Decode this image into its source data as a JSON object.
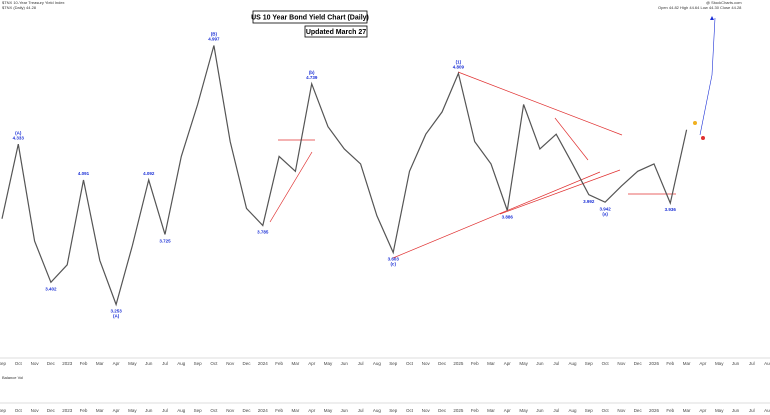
{
  "header_left": [
    "$TNX 10-Year Treasury Yield Index",
    "$TNX (Daily) 44.28"
  ],
  "header_right": "Open 44.82  High 44.64  Low 44.30  Close 44.28",
  "watermark": "@ StockCharts.com",
  "panel_label": "Balance Vol",
  "chart_data": {
    "type": "line",
    "title": "US 10 Year Bond Yield Chart (Daily)",
    "subtitle": "Updated March 27",
    "categories": [
      "Sep",
      "Oct",
      "Nov",
      "Dec",
      "2023",
      "Feb",
      "Mar",
      "Apr",
      "May",
      "Jun",
      "Jul",
      "Aug",
      "Sep",
      "Oct",
      "Nov",
      "Dec",
      "2024",
      "Feb",
      "Mar",
      "Apr",
      "May",
      "Jun",
      "Jul",
      "Aug",
      "Sep",
      "Oct",
      "Nov",
      "Dec",
      "2025",
      "Feb",
      "Mar",
      "Apr",
      "May",
      "Jun",
      "Jul",
      "Aug",
      "Sep",
      "Oct",
      "Nov",
      "Dec",
      "2026",
      "Feb",
      "Mar",
      "Apr",
      "May",
      "Jun",
      "Jul",
      "Aug",
      "Sep"
    ],
    "series": [
      {
        "name": "$TNX",
        "color": "#555555",
        "values": [
          3.83,
          4.333,
          3.68,
          3.402,
          3.52,
          4.091,
          3.55,
          3.253,
          3.65,
          4.092,
          3.725,
          4.25,
          4.6,
          4.997,
          4.35,
          3.9,
          3.785,
          4.25,
          4.15,
          4.739,
          4.45,
          4.3,
          4.2,
          3.85,
          3.603,
          4.15,
          4.4,
          4.55,
          4.809,
          4.35,
          4.2,
          3.886,
          4.6,
          4.3,
          4.4,
          4.2,
          3.992,
          3.942,
          4.05,
          4.15,
          4.2,
          3.936,
          4.43,
          null,
          null,
          null,
          null,
          null,
          null
        ],
        "value_labels": [
          null,
          "4.333",
          null,
          "3.402",
          null,
          "4.091",
          null,
          "3.253",
          null,
          "4.092",
          "3.725",
          null,
          null,
          "4.997",
          null,
          null,
          "3.785",
          null,
          null,
          "4.739",
          null,
          null,
          null,
          null,
          "3.603",
          null,
          null,
          null,
          "4.809",
          null,
          null,
          "3.886",
          null,
          null,
          null,
          null,
          "3.992",
          "3.942",
          null,
          null,
          null,
          "3.936",
          null,
          null,
          null,
          null,
          null,
          null,
          null
        ],
        "wave_labels": [
          null,
          "(A)",
          null,
          null,
          null,
          null,
          null,
          "(A)",
          null,
          null,
          null,
          null,
          null,
          "(B)",
          null,
          null,
          null,
          null,
          null,
          "(b)",
          null,
          null,
          null,
          null,
          "(c)",
          null,
          null,
          null,
          "(1)",
          null,
          null,
          null,
          null,
          null,
          null,
          null,
          null,
          "(a)",
          null,
          null,
          null,
          null,
          null,
          null,
          null,
          null,
          null,
          null,
          null
        ]
      }
    ],
    "ylim": [
      2.98,
      5.27
    ],
    "label_color": "#1a2fd6"
  }
}
